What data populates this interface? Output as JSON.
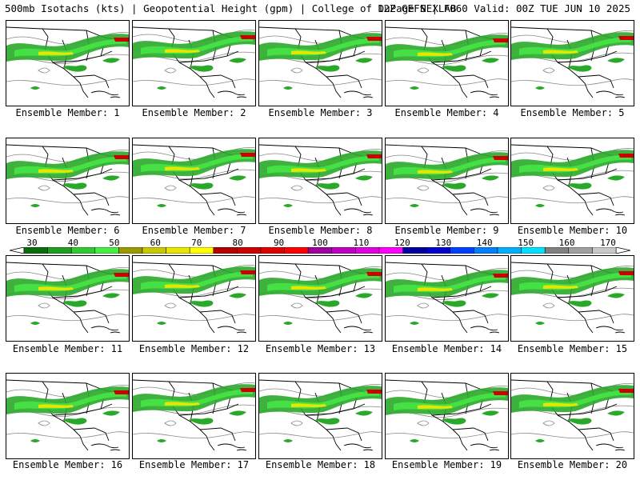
{
  "header": {
    "left": "500mb Isotachs (kts) | Geopotential Height (gpm) | College of DuPage NEXLAB",
    "right": "12Z GEFS | F060 Valid: 00Z TUE JUN 10 2025"
  },
  "panels": [
    {
      "label": "Ensemble Member: 1"
    },
    {
      "label": "Ensemble Member: 2"
    },
    {
      "label": "Ensemble Member: 3"
    },
    {
      "label": "Ensemble Member: 4"
    },
    {
      "label": "Ensemble Member: 5"
    },
    {
      "label": "Ensemble Member: 6"
    },
    {
      "label": "Ensemble Member: 7"
    },
    {
      "label": "Ensemble Member: 8"
    },
    {
      "label": "Ensemble Member: 9"
    },
    {
      "label": "Ensemble Member: 10"
    },
    {
      "label": "Ensemble Member: 11"
    },
    {
      "label": "Ensemble Member: 12"
    },
    {
      "label": "Ensemble Member: 13"
    },
    {
      "label": "Ensemble Member: 14"
    },
    {
      "label": "Ensemble Member: 15"
    },
    {
      "label": "Ensemble Member: 16"
    },
    {
      "label": "Ensemble Member: 17"
    },
    {
      "label": "Ensemble Member: 18"
    },
    {
      "label": "Ensemble Member: 19"
    },
    {
      "label": "Ensemble Member: 20"
    }
  ],
  "colorbar": {
    "labels": [
      "30",
      "40",
      "50",
      "60",
      "70",
      "80",
      "90",
      "100",
      "110",
      "120",
      "130",
      "140",
      "150",
      "160",
      "170"
    ],
    "colors": [
      "#0a6e0a",
      "#1e9e1e",
      "#32c832",
      "#44f044",
      "#9a9a00",
      "#c8c800",
      "#e6e600",
      "#ffff00",
      "#b40000",
      "#cc0000",
      "#e00000",
      "#ff0000",
      "#a000a0",
      "#c000c0",
      "#e000e0",
      "#ff00ff",
      "#0000a0",
      "#0000d0",
      "#0040ff",
      "#0080ff",
      "#00b0ff",
      "#00e0ff",
      "#808080",
      "#a0a0a0",
      "#c8c8c8"
    ]
  }
}
